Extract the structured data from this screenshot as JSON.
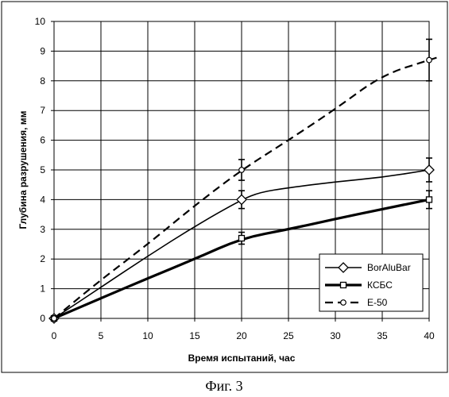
{
  "chart_data": {
    "type": "line",
    "xlabel": "Время испытаний, час",
    "ylabel": "Глубина разрушения, мм",
    "xlim": [
      0,
      40
    ],
    "ylim": [
      0,
      10
    ],
    "x_ticks": [
      "0",
      "5",
      "10",
      "15",
      "20",
      "25",
      "30",
      "35",
      "40"
    ],
    "y_ticks": [
      "0",
      "1",
      "2",
      "3",
      "4",
      "5",
      "6",
      "7",
      "8",
      "9",
      "10"
    ],
    "grid": "vertical and horizontal",
    "legend_position": "bottom-right",
    "series": [
      {
        "name": "BorAluBar",
        "marker": "diamond",
        "line_style": "solid-thin",
        "color": "#000000",
        "x": [
          0,
          20,
          40
        ],
        "y": [
          0,
          4.0,
          5.0
        ],
        "curve": [
          [
            0,
            0
          ],
          [
            5,
            1.05
          ],
          [
            10,
            2.1
          ],
          [
            15,
            3.1
          ],
          [
            20,
            4.0
          ],
          [
            22,
            4.25
          ],
          [
            25,
            4.4
          ],
          [
            30,
            4.6
          ],
          [
            35,
            4.75
          ],
          [
            40,
            5.0
          ]
        ],
        "error": [
          null,
          0.3,
          0.4
        ]
      },
      {
        "name": "КСБС",
        "marker": "square",
        "line_style": "solid-thick",
        "color": "#000000",
        "x": [
          0,
          20,
          40
        ],
        "y": [
          0,
          2.7,
          4.0
        ],
        "curve": [
          [
            0,
            0
          ],
          [
            5,
            0.68
          ],
          [
            10,
            1.35
          ],
          [
            15,
            2.0
          ],
          [
            20,
            2.7
          ],
          [
            25,
            3.0
          ],
          [
            30,
            3.35
          ],
          [
            35,
            3.68
          ],
          [
            40,
            4.0
          ]
        ],
        "error": [
          null,
          0.2,
          0.3
        ]
      },
      {
        "name": "Е-50",
        "marker": "circle",
        "line_style": "dashed",
        "color": "#000000",
        "x": [
          0,
          20,
          40
        ],
        "y": [
          0,
          5.0,
          8.7
        ],
        "curve": [
          [
            0,
            0
          ],
          [
            5,
            1.3
          ],
          [
            10,
            2.5
          ],
          [
            15,
            3.8
          ],
          [
            20,
            5.0
          ],
          [
            25,
            6.0
          ],
          [
            30,
            7.05
          ],
          [
            35,
            8.2
          ],
          [
            40,
            8.7
          ],
          [
            41,
            8.8
          ]
        ],
        "error": [
          null,
          0.35,
          0.7
        ]
      }
    ]
  },
  "caption": "Фиг. 3"
}
